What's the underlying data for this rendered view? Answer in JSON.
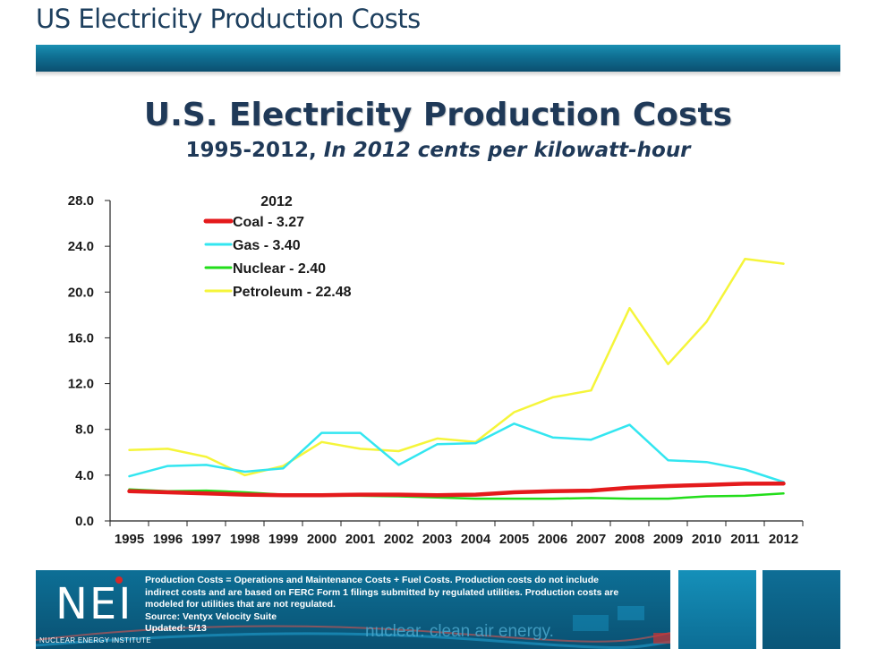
{
  "page": {
    "header_title": "US Electricity Production Costs",
    "title": "U.S. Electricity Production Costs",
    "subtitle_a": "1995-2012,",
    "subtitle_b": "In 2012 cents per kilowatt-hour",
    "accent_color": "#0f6f92"
  },
  "chart_data": {
    "type": "line",
    "title": "U.S. Electricity Production Costs",
    "subtitle": "1995-2012, In 2012 cents per kilowatt-hour",
    "xlabel": "",
    "ylabel": "",
    "x": [
      "1995",
      "1996",
      "1997",
      "1998",
      "1999",
      "2000",
      "2001",
      "2002",
      "2003",
      "2004",
      "2005",
      "2006",
      "2007",
      "2008",
      "2009",
      "2010",
      "2011",
      "2012"
    ],
    "ylim": [
      0,
      28
    ],
    "yticks": [
      "0.0",
      "4.0",
      "8.0",
      "12.0",
      "16.0",
      "20.0",
      "24.0",
      "28.0"
    ],
    "grid": false,
    "legend_position": "top-left",
    "legend_title": "2012",
    "series": [
      {
        "name": "Coal - 3.27",
        "color": "#e41a1c",
        "width": 4.5,
        "values": [
          2.6,
          2.5,
          2.4,
          2.3,
          2.25,
          2.25,
          2.3,
          2.3,
          2.25,
          2.3,
          2.5,
          2.6,
          2.65,
          2.9,
          3.05,
          3.15,
          3.25,
          3.27
        ]
      },
      {
        "name": "Gas - 3.40",
        "color": "#33e6f0",
        "width": 2.5,
        "values": [
          3.9,
          4.8,
          4.9,
          4.3,
          4.6,
          7.7,
          7.7,
          4.9,
          6.7,
          6.8,
          8.5,
          7.3,
          7.1,
          8.4,
          5.3,
          5.15,
          4.5,
          3.4
        ]
      },
      {
        "name": "Nuclear - 2.40",
        "color": "#22dd1a",
        "width": 2.5,
        "values": [
          2.75,
          2.6,
          2.65,
          2.5,
          2.3,
          2.2,
          2.2,
          2.15,
          2.05,
          1.95,
          1.95,
          1.95,
          2.0,
          1.95,
          1.95,
          2.15,
          2.2,
          2.4
        ]
      },
      {
        "name": "Petroleum - 22.48",
        "color": "#f5f53a",
        "width": 2.5,
        "values": [
          6.2,
          6.3,
          5.6,
          4.0,
          4.8,
          6.9,
          6.3,
          6.1,
          7.2,
          6.9,
          9.5,
          10.8,
          11.4,
          18.6,
          13.7,
          17.4,
          22.9,
          22.48
        ]
      }
    ]
  },
  "footer": {
    "logo_text": "NEI",
    "org_name": "NUCLEAR ENERGY INSTITUTE",
    "note_line1": "Production Costs = Operations and Maintenance Costs + Fuel Costs. Production costs do not include",
    "note_line2": "indirect costs and are based on FERC Form 1 filings submitted by regulated utilities. Production costs are",
    "note_line3": "modeled for utilities that are not regulated.",
    "source": "Source: Ventyx Velocity Suite",
    "updated": "Updated: 5/13",
    "tagline": "nuclear. clean air energy."
  }
}
